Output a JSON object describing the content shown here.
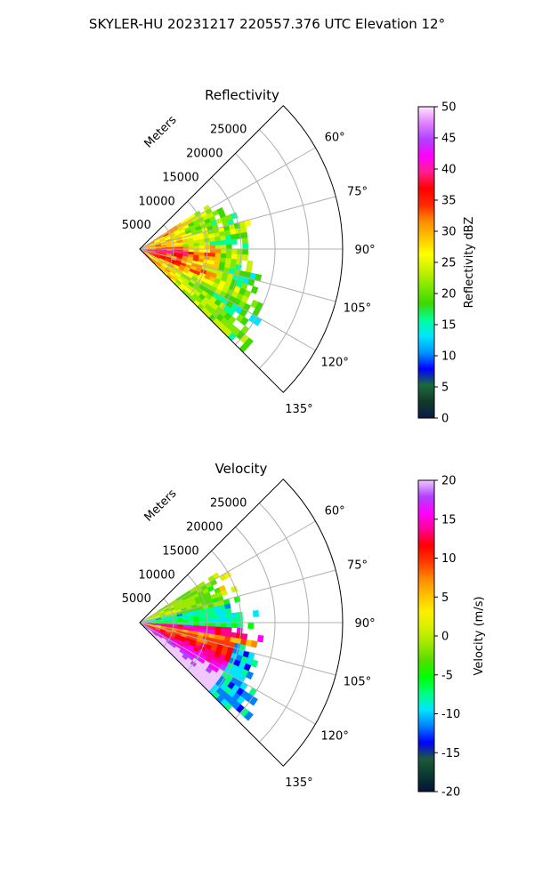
{
  "suptitle": "SKYLER-HU  20231217  220557.376 UTC Elevation 12°",
  "colors": {
    "reflectivity_stops": [
      "#0b1a4a",
      "#123a2a",
      "#1b6b3a",
      "#0000ff",
      "#0096ff",
      "#00e5ff",
      "#00ff99",
      "#3cd800",
      "#7de800",
      "#c8f000",
      "#ffff00",
      "#ffc400",
      "#ff8c00",
      "#ff2a00",
      "#ff0000",
      "#ff1e8c",
      "#ff00ff",
      "#b040ff",
      "#e080ff",
      "#ffe6ff"
    ],
    "velocity_stops": [
      "#061238",
      "#0a3a30",
      "#1d5a3a",
      "#0000ff",
      "#0080ff",
      "#00e5ff",
      "#00ff80",
      "#00ff00",
      "#55dd00",
      "#9ee800",
      "#d6f000",
      "#ffee00",
      "#ffc000",
      "#ff8800",
      "#ff3a00",
      "#ff0000",
      "#ff0090",
      "#ff00ff",
      "#b040ff",
      "#f0c8ff"
    ]
  },
  "chart_data": [
    {
      "type": "heatmap",
      "subtype": "polar-sector",
      "title": "Reflectivity",
      "radial_label": "Meters",
      "r_ticks": [
        "5000",
        "10000",
        "15000",
        "20000",
        "25000"
      ],
      "theta_ticks": [
        "60°",
        "75°",
        "90°",
        "105°",
        "120°",
        "135°"
      ],
      "theta_range": [
        45,
        135
      ],
      "r_range": [
        0,
        30000
      ],
      "grid": true,
      "colorbar": {
        "label": "Reflectivity dBZ",
        "range": [
          0,
          50
        ],
        "ticks": [
          "0",
          "5",
          "10",
          "15",
          "20",
          "25",
          "30",
          "35",
          "40",
          "45",
          "50"
        ]
      }
    },
    {
      "type": "heatmap",
      "subtype": "polar-sector",
      "title": "Velocity",
      "radial_label": "Meters",
      "r_ticks": [
        "5000",
        "10000",
        "15000",
        "20000",
        "25000"
      ],
      "theta_ticks": [
        "60°",
        "75°",
        "90°",
        "105°",
        "120°",
        "135°"
      ],
      "theta_range": [
        45,
        135
      ],
      "r_range": [
        0,
        30000
      ],
      "grid": true,
      "colorbar": {
        "label": "Velocity (m/s)",
        "range": [
          -20,
          20
        ],
        "ticks": [
          "-20",
          "-15",
          "-10",
          "-5",
          "0",
          "5",
          "10",
          "15",
          "20"
        ]
      }
    }
  ]
}
